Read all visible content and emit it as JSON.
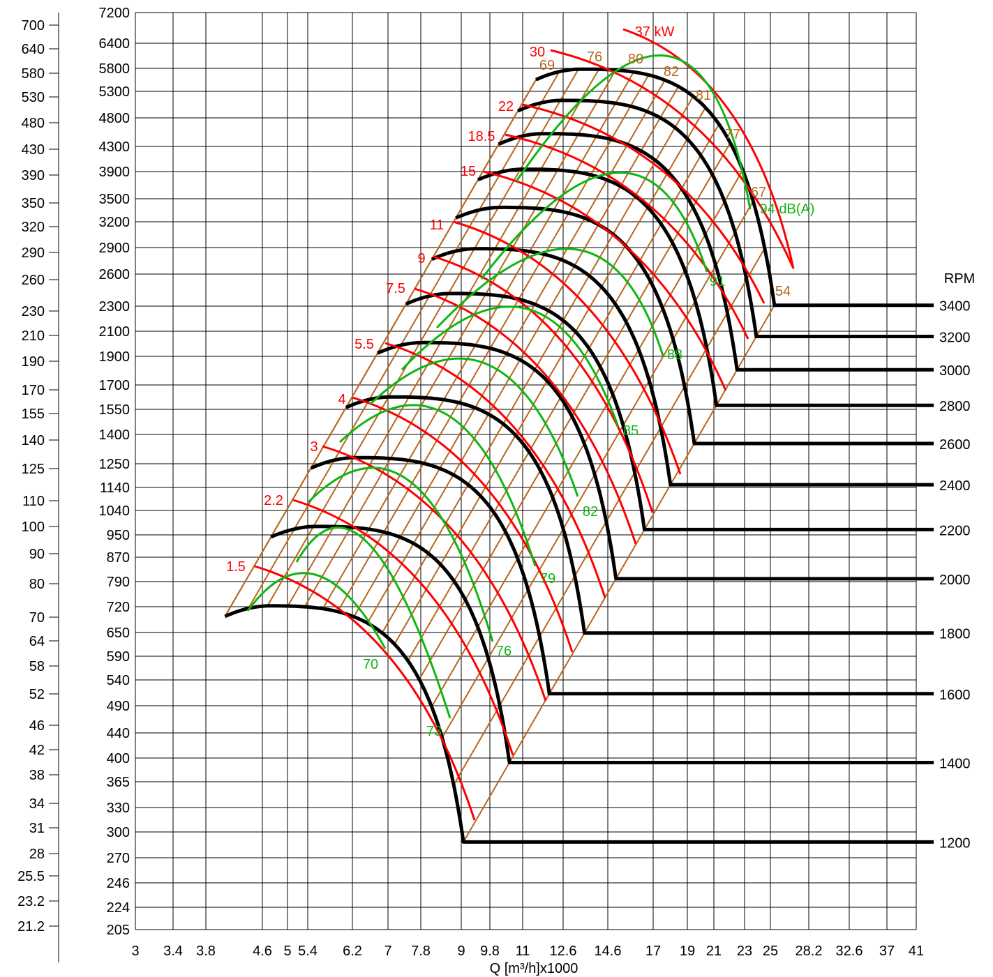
{
  "chart_data": {
    "type": "line",
    "title": "",
    "xlabel": "Q [m³/h]x1000",
    "ylabel_outer": "",
    "ylabel_inner": "",
    "x_ticks": [
      "3",
      "3.4",
      "3.8",
      "4.6",
      "5",
      "5.4",
      "6.2",
      "7",
      "7.8",
      "9",
      "9.8",
      "11",
      "12.6",
      "14.6",
      "17",
      "19",
      "21",
      "23",
      "25",
      "28.2",
      "32.6",
      "37",
      "41"
    ],
    "y_inner_ticks": [
      "7200",
      "6400",
      "5800",
      "5300",
      "4800",
      "4300",
      "3900",
      "3500",
      "3200",
      "2900",
      "2600",
      "2300",
      "2100",
      "1900",
      "1700",
      "1550",
      "1400",
      "1250",
      "1140",
      "1040",
      "950",
      "870",
      "790",
      "720",
      "650",
      "590",
      "540",
      "490",
      "440",
      "400",
      "365",
      "330",
      "300",
      "270",
      "246",
      "224",
      "205"
    ],
    "y_outer_ticks": [
      "700",
      "640",
      "580",
      "530",
      "480",
      "430",
      "390",
      "350",
      "320",
      "290",
      "260",
      "230",
      "210",
      "190",
      "170",
      "155",
      "140",
      "125",
      "110",
      "100",
      "90",
      "80",
      "70",
      "64",
      "58",
      "52",
      "46",
      "42",
      "38",
      "34",
      "31",
      "28",
      "25.5",
      "23.2",
      "21.2"
    ],
    "rpm_title": "RPM",
    "rpm_curves": [
      {
        "rpm": "1200",
        "qmax": 9.0,
        "qpeak": 4.7,
        "pmax": 720
      },
      {
        "rpm": "1400",
        "qmax": 10.5,
        "qpeak": 5.5,
        "pmax": 980
      },
      {
        "rpm": "1600",
        "qmax": 12.0,
        "qpeak": 6.27,
        "pmax": 1280
      },
      {
        "rpm": "1800",
        "qmax": 13.5,
        "qpeak": 7.05,
        "pmax": 1620
      },
      {
        "rpm": "2000",
        "qmax": 15.0,
        "qpeak": 7.84,
        "pmax": 2000
      },
      {
        "rpm": "2200",
        "qmax": 16.5,
        "qpeak": 8.62,
        "pmax": 2420
      },
      {
        "rpm": "2400",
        "qmax": 18.0,
        "qpeak": 9.4,
        "pmax": 2880
      },
      {
        "rpm": "2600",
        "qmax": 19.5,
        "qpeak": 10.2,
        "pmax": 3380
      },
      {
        "rpm": "2800",
        "qmax": 21.0,
        "qpeak": 11.0,
        "pmax": 3920
      },
      {
        "rpm": "3000",
        "qmax": 22.5,
        "qpeak": 11.75,
        "pmax": 4500
      },
      {
        "rpm": "3200",
        "qmax": 24.0,
        "qpeak": 12.5,
        "pmax": 5120
      },
      {
        "rpm": "3400",
        "qmax": 25.5,
        "qpeak": 13.3,
        "pmax": 5780
      }
    ],
    "power_labels": [
      "1.5",
      "2.2",
      "3",
      "4",
      "5.5",
      "7.5",
      "9",
      "11",
      "15",
      "18.5",
      "22",
      "30",
      "37 kW"
    ],
    "noise_labels": [
      "70",
      "73",
      "76",
      "79",
      "82",
      "85",
      "88",
      "91",
      "94 dB(A)"
    ],
    "efficiency_labels": [
      "69",
      "76",
      "80",
      "82",
      "81",
      "77",
      "67",
      "54"
    ],
    "colors": {
      "rpm": "#000000",
      "power": "#ff0000",
      "noise": "#11b511",
      "efficiency": "#b8651b",
      "grid": "#000000"
    }
  }
}
